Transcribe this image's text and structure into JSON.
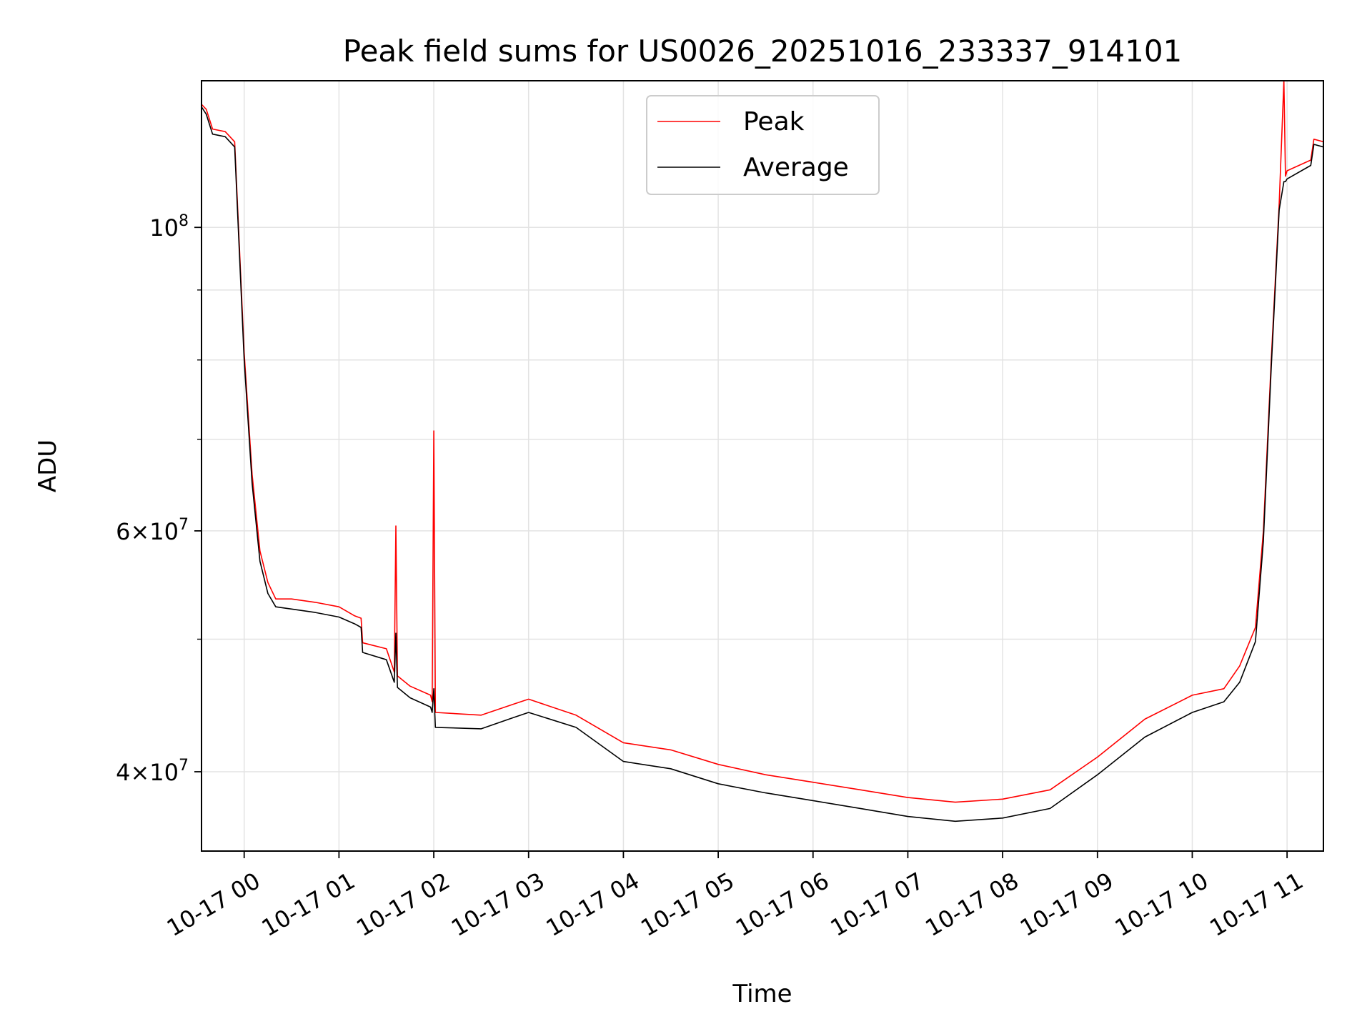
{
  "chart_data": {
    "type": "line",
    "title": "Peak field sums for US0026_20251016_233337_914101",
    "xlabel": "Time",
    "ylabel": "ADU",
    "y_scale": "log",
    "ylim": [
      35000000,
      128000000
    ],
    "xlim": [
      "2025-10-16T23:33",
      "2025-10-17T11:23"
    ],
    "grid": true,
    "legend_position": "upper center",
    "x_tick_labels": [
      "10-17 00",
      "10-17 01",
      "10-17 02",
      "10-17 03",
      "10-17 04",
      "10-17 05",
      "10-17 06",
      "10-17 07",
      "10-17 08",
      "10-17 09",
      "10-17 10",
      "10-17 11"
    ],
    "x_ticks": [
      "2025-10-17T00:00",
      "2025-10-17T01:00",
      "2025-10-17T02:00",
      "2025-10-17T03:00",
      "2025-10-17T04:00",
      "2025-10-17T05:00",
      "2025-10-17T06:00",
      "2025-10-17T07:00",
      "2025-10-17T08:00",
      "2025-10-17T09:00",
      "2025-10-17T10:00",
      "2025-10-17T11:00"
    ],
    "y_ticks": [
      {
        "value": 40000000,
        "base": "4",
        "exp": "7",
        "mult": true
      },
      {
        "value": 60000000,
        "base": "6",
        "exp": "7",
        "mult": true
      },
      {
        "value": 100000000,
        "base": "10",
        "exp": "8",
        "mult": false
      }
    ],
    "y_minor_ticks": [
      50000000,
      70000000,
      80000000,
      90000000
    ],
    "series": [
      {
        "name": "Peak",
        "color": "#ff0000",
        "x": [
          "2025-10-16T23:33",
          "2025-10-16T23:36",
          "2025-10-16T23:40",
          "2025-10-16T23:48",
          "2025-10-16T23:54",
          "2025-10-17T00:00",
          "2025-10-17T00:05",
          "2025-10-17T00:10",
          "2025-10-17T00:15",
          "2025-10-17T00:20",
          "2025-10-17T00:30",
          "2025-10-17T00:45",
          "2025-10-17T01:00",
          "2025-10-17T01:10",
          "2025-10-17T01:14",
          "2025-10-17T01:15",
          "2025-10-17T01:30",
          "2025-10-17T01:35",
          "2025-10-17T01:36",
          "2025-10-17T01:37",
          "2025-10-17T01:45",
          "2025-10-17T01:58",
          "2025-10-17T01:59",
          "2025-10-17T02:00",
          "2025-10-17T02:01",
          "2025-10-17T02:30",
          "2025-10-17T02:50",
          "2025-10-17T03:00",
          "2025-10-17T03:30",
          "2025-10-17T04:00",
          "2025-10-17T04:30",
          "2025-10-17T05:00",
          "2025-10-17T05:30",
          "2025-10-17T06:00",
          "2025-10-17T06:30",
          "2025-10-17T07:00",
          "2025-10-17T07:30",
          "2025-10-17T08:00",
          "2025-10-17T08:30",
          "2025-10-17T09:00",
          "2025-10-17T09:30",
          "2025-10-17T10:00",
          "2025-10-17T10:20",
          "2025-10-17T10:30",
          "2025-10-17T10:40",
          "2025-10-17T10:45",
          "2025-10-17T10:50",
          "2025-10-17T10:55",
          "2025-10-17T10:58",
          "2025-10-17T10:59",
          "2025-10-17T11:00",
          "2025-10-17T11:15",
          "2025-10-17T11:17",
          "2025-10-17T11:23"
        ],
        "y": [
          123000000,
          122000000,
          118000000,
          117500000,
          115500000,
          81000000,
          66000000,
          58000000,
          55000000,
          53500000,
          53500000,
          53200000,
          52800000,
          52000000,
          51800000,
          49700000,
          49200000,
          47300000,
          60500000,
          47000000,
          46200000,
          45500000,
          45000000,
          71000000,
          44200000,
          44000000,
          44800000,
          45200000,
          44000000,
          42000000,
          41500000,
          40500000,
          39800000,
          39300000,
          38800000,
          38300000,
          38000000,
          38200000,
          38800000,
          41000000,
          43700000,
          45500000,
          46000000,
          47800000,
          51000000,
          60000000,
          80000000,
          104000000,
          128000000,
          109000000,
          110000000,
          112000000,
          116000000,
          115500000
        ]
      },
      {
        "name": "Average",
        "color": "#000000",
        "x": [
          "2025-10-16T23:33",
          "2025-10-16T23:36",
          "2025-10-16T23:40",
          "2025-10-16T23:48",
          "2025-10-16T23:54",
          "2025-10-17T00:00",
          "2025-10-17T00:05",
          "2025-10-17T00:10",
          "2025-10-17T00:15",
          "2025-10-17T00:20",
          "2025-10-17T00:30",
          "2025-10-17T00:45",
          "2025-10-17T01:00",
          "2025-10-17T01:10",
          "2025-10-17T01:14",
          "2025-10-17T01:15",
          "2025-10-17T01:30",
          "2025-10-17T01:35",
          "2025-10-17T01:36",
          "2025-10-17T01:37",
          "2025-10-17T01:45",
          "2025-10-17T01:58",
          "2025-10-17T01:59",
          "2025-10-17T02:00",
          "2025-10-17T02:01",
          "2025-10-17T02:30",
          "2025-10-17T02:50",
          "2025-10-17T03:00",
          "2025-10-17T03:30",
          "2025-10-17T04:00",
          "2025-10-17T04:30",
          "2025-10-17T05:00",
          "2025-10-17T05:30",
          "2025-10-17T06:00",
          "2025-10-17T06:30",
          "2025-10-17T07:00",
          "2025-10-17T07:30",
          "2025-10-17T08:00",
          "2025-10-17T08:30",
          "2025-10-17T09:00",
          "2025-10-17T09:30",
          "2025-10-17T10:00",
          "2025-10-17T10:20",
          "2025-10-17T10:30",
          "2025-10-17T10:40",
          "2025-10-17T10:45",
          "2025-10-17T10:50",
          "2025-10-17T10:55",
          "2025-10-17T10:58",
          "2025-10-17T10:59",
          "2025-10-17T11:00",
          "2025-10-17T11:15",
          "2025-10-17T11:17",
          "2025-10-17T11:23"
        ],
        "y": [
          122500000,
          121000000,
          117000000,
          116500000,
          114500000,
          80000000,
          65000000,
          57000000,
          54000000,
          52800000,
          52600000,
          52300000,
          51900000,
          51300000,
          51000000,
          48900000,
          48300000,
          46500000,
          50500000,
          46100000,
          45300000,
          44600000,
          44200000,
          46000000,
          43100000,
          43000000,
          43800000,
          44200000,
          43100000,
          40700000,
          40200000,
          39200000,
          38600000,
          38100000,
          37600000,
          37100000,
          36800000,
          37000000,
          37600000,
          39800000,
          42400000,
          44200000,
          45000000,
          46500000,
          49800000,
          59000000,
          79000000,
          103000000,
          108000000,
          108000000,
          108500000,
          111000000,
          115000000,
          114500000
        ]
      }
    ]
  }
}
